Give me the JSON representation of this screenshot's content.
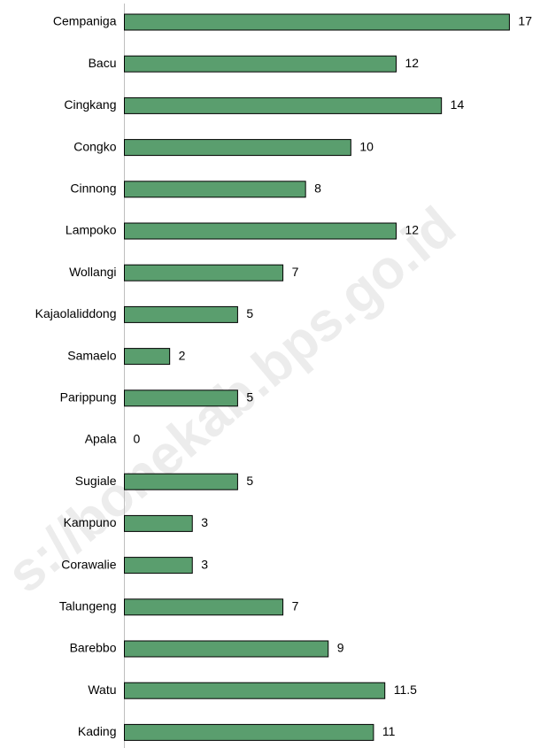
{
  "chart_data": {
    "type": "bar",
    "orientation": "horizontal",
    "categories": [
      "Cempaniga",
      "Bacu",
      "Cingkang",
      "Congko",
      "Cinnong",
      "Lampoko",
      "Wollangi",
      "Kajaolaliddong",
      "Samaelo",
      "Parippung",
      "Apala",
      "Sugiale",
      "Kampuno",
      "Corawalie",
      "Talungeng",
      "Barebbo",
      "Watu",
      "Kading"
    ],
    "values": [
      17,
      12,
      14,
      10,
      8,
      12,
      7,
      5,
      2,
      5,
      0,
      5,
      3,
      3,
      7,
      9,
      11.5,
      11
    ],
    "color": "#5a9e6e",
    "xlim": [
      0,
      18
    ],
    "watermark": "s://bonekab.bps.go.id"
  }
}
